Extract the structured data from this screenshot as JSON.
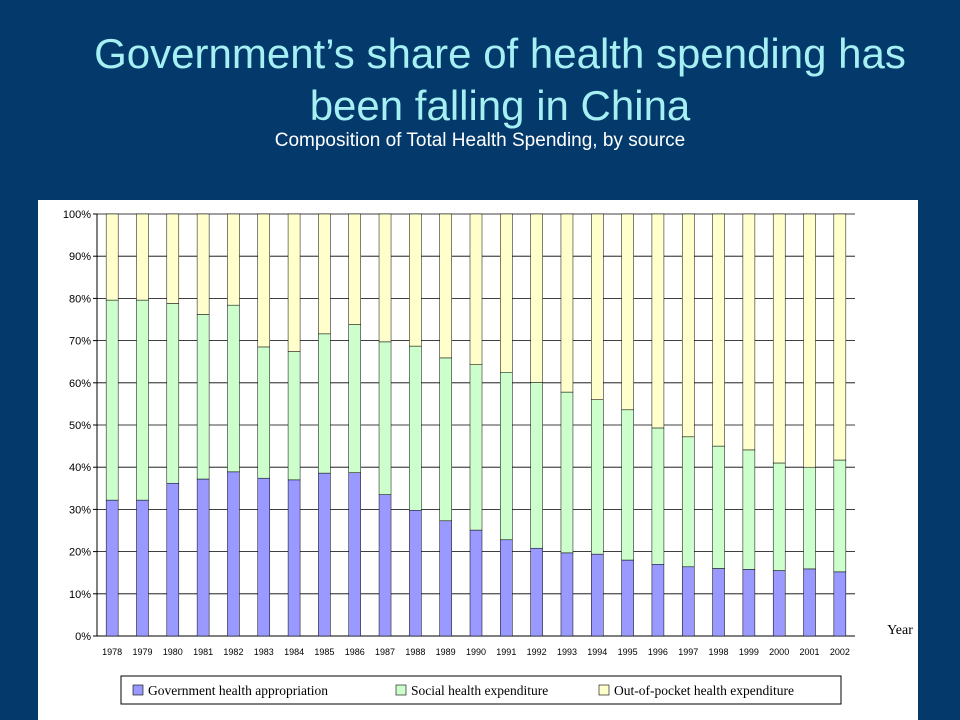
{
  "slide": {
    "title_line1": "Government’s share of health spending has",
    "title_line2": "been falling in China",
    "subtitle": "Composition of Total Health Spending, by source"
  },
  "chart_data": {
    "type": "bar",
    "stacked": true,
    "percent_stacked": true,
    "categories": [
      "1978",
      "1979",
      "1980",
      "1981",
      "1982",
      "1983",
      "1984",
      "1985",
      "1986",
      "1987",
      "1988",
      "1989",
      "1990",
      "1991",
      "1992",
      "1993",
      "1994",
      "1995",
      "1996",
      "1997",
      "1998",
      "1999",
      "2000",
      "2001",
      "2002"
    ],
    "series": [
      {
        "name": "Government health appropriation",
        "color": "#9999ff",
        "values": [
          32.2,
          32.2,
          36.2,
          37.2,
          38.9,
          37.4,
          37.0,
          38.6,
          38.7,
          33.5,
          29.8,
          27.3,
          25.1,
          22.8,
          20.8,
          19.7,
          19.4,
          18.0,
          17.0,
          16.4,
          16.0,
          15.8,
          15.5,
          15.9,
          15.2
        ]
      },
      {
        "name": "Social health expenditure",
        "color": "#ccffcc",
        "values": [
          47.4,
          47.4,
          42.6,
          39.0,
          39.5,
          31.1,
          30.4,
          33.0,
          35.1,
          36.2,
          38.9,
          38.6,
          39.2,
          39.7,
          39.3,
          38.1,
          36.6,
          35.6,
          32.3,
          30.8,
          29.0,
          28.3,
          25.5,
          24.1,
          26.5
        ]
      },
      {
        "name": "Out-of-pocket health expenditure",
        "color": "#ffffcc",
        "values": [
          20.4,
          20.4,
          21.2,
          23.8,
          21.6,
          31.5,
          32.6,
          28.4,
          26.2,
          30.3,
          31.3,
          34.1,
          35.7,
          37.5,
          39.9,
          42.2,
          44.0,
          46.4,
          50.7,
          52.8,
          55.0,
          55.9,
          59.0,
          60.0,
          58.3
        ]
      }
    ],
    "y_ticks": [
      "0%",
      "10%",
      "20%",
      "30%",
      "40%",
      "50%",
      "60%",
      "70%",
      "80%",
      "90%",
      "100%"
    ],
    "ylim": [
      0,
      100
    ],
    "xlabel": "Year",
    "ylabel": "",
    "grid": true,
    "legend_position": "bottom"
  }
}
